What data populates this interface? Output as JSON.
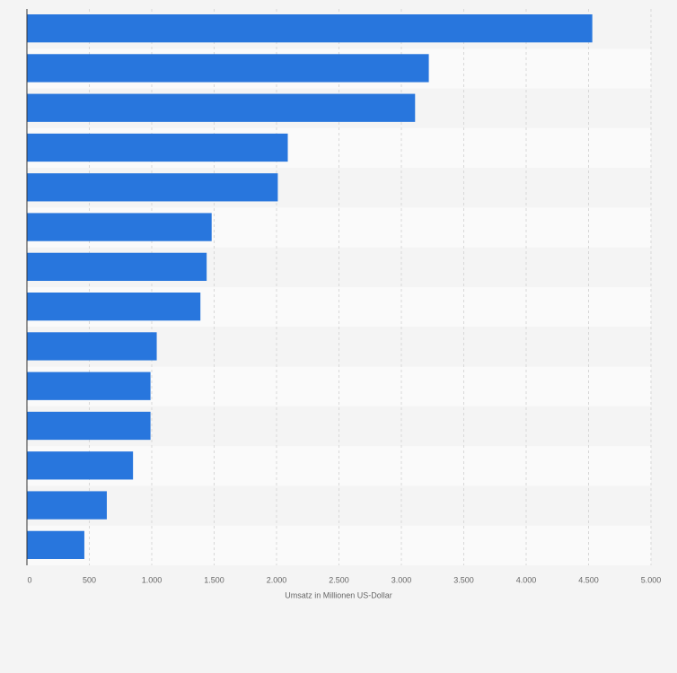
{
  "chart_data": {
    "type": "bar",
    "orientation": "horizontal",
    "x_label": "Umsatz in Millionen US-Dollar",
    "categories": [
      null,
      null,
      null,
      null,
      null,
      null,
      null,
      null,
      null,
      null,
      null,
      null,
      null,
      null
    ],
    "values": [
      4530,
      3220,
      3110,
      2090,
      2010,
      1480,
      1440,
      1390,
      1040,
      990,
      990,
      850,
      640,
      460
    ],
    "color": "#2876dd",
    "xlim": [
      0,
      5000
    ],
    "xticks": [
      0,
      500,
      {
        "value": 1000,
        "label": "1.000"
      },
      {
        "value": 1500,
        "label": "1.500"
      },
      {
        "value": 2000,
        "label": "2.000"
      },
      {
        "value": 2500,
        "label": "2.500"
      },
      {
        "value": 3000,
        "label": "3.000"
      },
      {
        "value": 3500,
        "label": "3.500"
      },
      {
        "value": 4000,
        "label": "4.000"
      },
      {
        "value": 4500,
        "label": "4.500"
      },
      {
        "value": 5000,
        "label": "5.000"
      }
    ],
    "grid": true
  }
}
